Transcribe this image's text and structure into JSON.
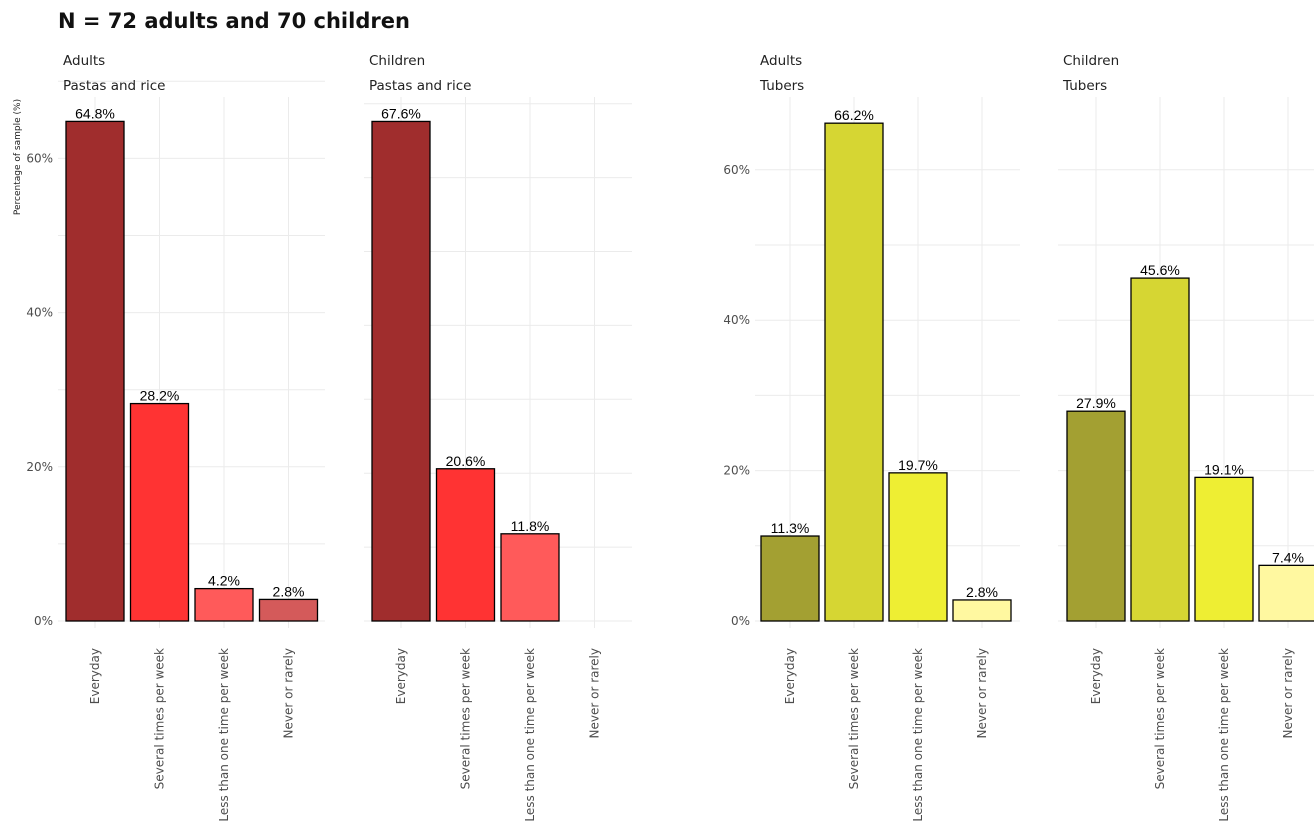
{
  "title": "N = 72 adults and 70 children",
  "colors": {
    "pasta": [
      "#a02d2d",
      "#ff3333",
      "#ff5a5a",
      "#d45a5a"
    ],
    "tubers": [
      "#a3a032",
      "#d6d633",
      "#eeee33",
      "#fff8a0"
    ],
    "grid": "#ebebeb"
  },
  "chart_data": [
    {
      "type": "bar",
      "group": "Adults",
      "food": "Pastas and rice",
      "categories": [
        "Everyday",
        "Several times per week",
        "Less than one time per week",
        "Never or rarely"
      ],
      "values": [
        64.8,
        28.2,
        4.2,
        2.8
      ],
      "labels": [
        "64.8%",
        "28.2%",
        "4.2%",
        "2.8%"
      ],
      "ylim": [
        0,
        70
      ],
      "yticks": [
        0,
        20,
        40,
        60
      ],
      "yticklabels": [
        "0%",
        "20%",
        "40%",
        "60%"
      ],
      "ylabel": "Percentage of sample (%)"
    },
    {
      "type": "bar",
      "group": "Children",
      "food": "Pastas and rice",
      "categories": [
        "Everyday",
        "Several times per week",
        "Less than one time per week",
        "Never or rarely"
      ],
      "values": [
        67.6,
        20.6,
        11.8,
        0
      ],
      "labels": [
        "67.6%",
        "20.6%",
        "11.8%",
        ""
      ],
      "ylim": [
        0,
        70
      ]
    },
    {
      "type": "bar",
      "group": "Adults",
      "food": "Tubers",
      "categories": [
        "Everyday",
        "Several times per week",
        "Less than one time per week",
        "Never or rarely"
      ],
      "values": [
        11.3,
        66.2,
        19.7,
        2.8
      ],
      "labels": [
        "11.3%",
        "66.2%",
        "19.7%",
        "2.8%"
      ],
      "ylim": [
        0,
        69
      ],
      "yticks": [
        0,
        20,
        40,
        60
      ],
      "yticklabels": [
        "0%",
        "20%",
        "40%",
        "60%"
      ]
    },
    {
      "type": "bar",
      "group": "Children",
      "food": "Tubers",
      "categories": [
        "Everyday",
        "Several times per week",
        "Less than one time per week",
        "Never or rarely"
      ],
      "values": [
        27.9,
        45.6,
        19.1,
        7.4
      ],
      "labels": [
        "27.9%",
        "45.6%",
        "19.1%",
        "7.4%"
      ],
      "ylim": [
        0,
        69
      ]
    }
  ]
}
